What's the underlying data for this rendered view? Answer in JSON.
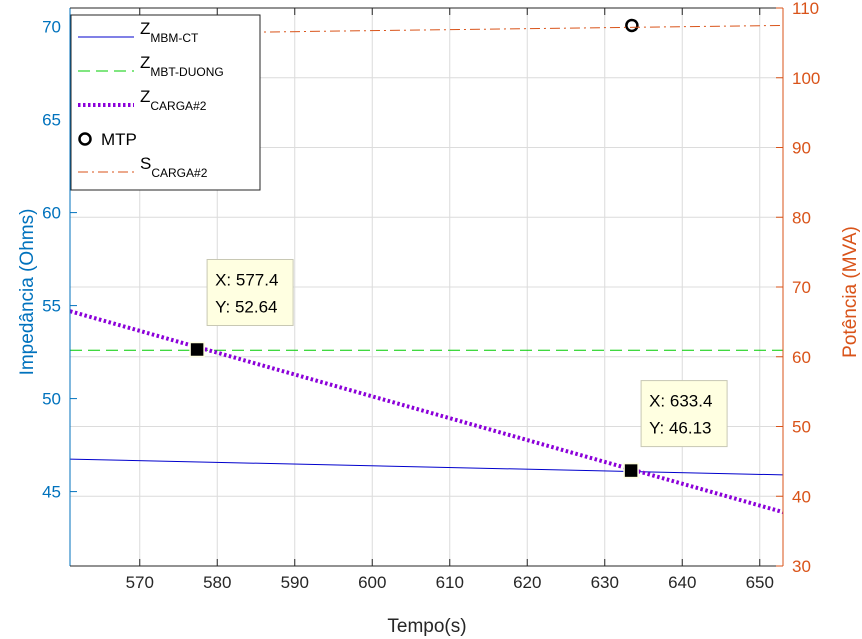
{
  "chart_data": {
    "type": "line",
    "xlabel": "Tempo(s)",
    "ylabel_left": "Impedância (Ohms)",
    "ylabel_right": "Potência (MVA)",
    "xlim": [
      561,
      653
    ],
    "ylim_left": [
      41,
      71
    ],
    "ylim_right": [
      30,
      110
    ],
    "x_ticks": [
      570,
      580,
      590,
      600,
      610,
      620,
      630,
      640,
      650
    ],
    "y_ticks_left": [
      45,
      50,
      55,
      60,
      65,
      70
    ],
    "y_ticks_right": [
      30,
      40,
      50,
      60,
      70,
      80,
      90,
      100,
      110
    ],
    "grid": true,
    "legend_position": "top-left",
    "series": [
      {
        "name": "Z",
        "sub": "MBM-CT",
        "axis": "left",
        "color": "#0000CC",
        "style": "solid",
        "width": 1,
        "x": [
          561,
          653
        ],
        "y": [
          46.75,
          45.9
        ]
      },
      {
        "name": "Z",
        "sub": "MBT-DUONG",
        "axis": "left",
        "color": "#00CC00",
        "style": "dashed",
        "width": 1,
        "x": [
          561,
          653
        ],
        "y": [
          52.6,
          52.6
        ]
      },
      {
        "name": "Z",
        "sub": "CARGA#2",
        "axis": "left",
        "color": "#8B00D9",
        "style": "dotted",
        "width": 4,
        "x": [
          561,
          653
        ],
        "y": [
          54.7,
          43.9
        ]
      },
      {
        "name": "MTP",
        "sub": "",
        "axis": "right",
        "color": "#000000",
        "style": "marker",
        "x": [
          633.5
        ],
        "y": [
          107.5
        ]
      },
      {
        "name": "S",
        "sub": "CARGA#2",
        "axis": "right",
        "color": "#D95319",
        "style": "dashdot",
        "width": 1,
        "x": [
          561,
          653
        ],
        "y": [
          106.2,
          107.5
        ]
      }
    ],
    "datatips": [
      {
        "x": 577.4,
        "y": 52.64,
        "line1": "X: 577.4",
        "line2": "Y: 52.64"
      },
      {
        "x": 633.4,
        "y": 46.13,
        "line1": "X: 633.4",
        "line2": "Y: 46.13"
      }
    ],
    "colors": {
      "left_axis": "#0072BD",
      "right_axis": "#D95319",
      "grid": "#DCDCDC"
    }
  }
}
